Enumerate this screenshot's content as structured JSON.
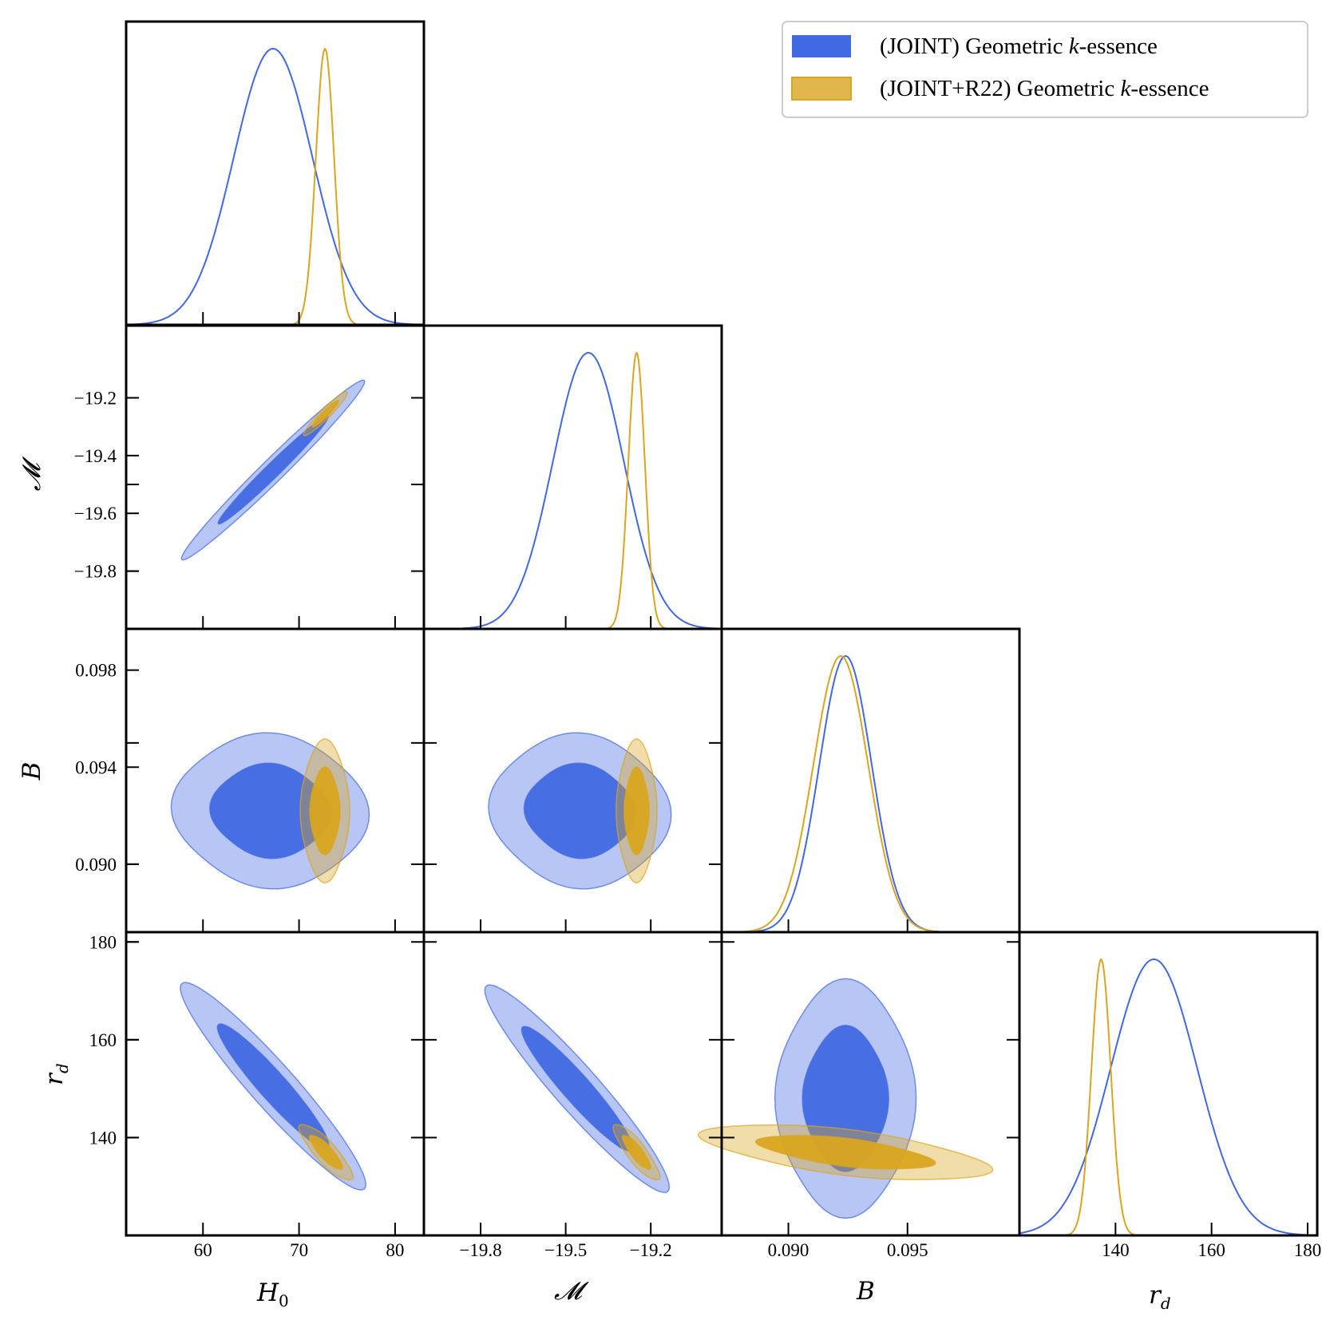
{
  "chart_data": {
    "type": "corner",
    "parameters": [
      {
        "key": "H0",
        "label": "H0",
        "range": [
          52,
          83
        ],
        "ticks": [
          60,
          70,
          80
        ]
      },
      {
        "key": "M",
        "label": "𝓜",
        "range": [
          -20.0,
          -18.95
        ],
        "ticks": [
          -19.8,
          -19.5,
          -19.2
        ]
      },
      {
        "key": "B",
        "label": "B",
        "range": [
          0.0872,
          0.0997
        ],
        "ticks": [
          0.09,
          0.095
        ]
      },
      {
        "key": "rd",
        "label": "rd",
        "range": [
          120,
          182
        ],
        "ticks": [
          140,
          160,
          180
        ]
      }
    ],
    "tick_text": {
      "H0": [
        "60",
        "70",
        "80"
      ],
      "M_x": [
        "−19.8",
        "−19.5",
        "−19.2"
      ],
      "B_x": [
        "0.090",
        "0.095"
      ],
      "rd_x": [
        "140",
        "160",
        "180"
      ],
      "M_y": [
        "−19.2",
        "−19.4",
        "−19.6",
        "−19.8"
      ],
      "B_y": [
        "0.098",
        "0.094",
        "0.090"
      ],
      "rd_y": [
        "180",
        "160",
        "140"
      ]
    },
    "axis_labels": {
      "x_H0": "H",
      "x_H0_sub": "0",
      "x_M": "𝓜",
      "x_B": "B",
      "x_rd": "r",
      "x_rd_sub": "d",
      "y_M": "𝓜",
      "y_B": "B",
      "y_rd": "r",
      "y_rd_sub": "d"
    },
    "legend": {
      "position": "top-right",
      "entries": [
        {
          "prefix": "(JOINT)  Geometric ",
          "var": "k",
          "suffix": "-essence",
          "color": "#4169e1"
        },
        {
          "prefix": "(JOINT+R22)  Geometric ",
          "var": "k",
          "suffix": "-essence",
          "color": "#daa520"
        }
      ]
    },
    "series": [
      {
        "name": "(JOINT) Geometric k-essence",
        "color": "#4169e1",
        "marginals": {
          "H0": {
            "mean": 67.3,
            "sd": 4.1
          },
          "M": {
            "mean": -19.42,
            "sd": 0.125
          },
          "B": {
            "mean": 0.0924,
            "sd": 0.0011
          },
          "rd": {
            "mean": 148.0,
            "sd": 9.0
          }
        },
        "contours_2d": [
          {
            "x": "H0",
            "y": "M",
            "center": [
              67.3,
              -19.45
            ],
            "endpoints": [
              [
                57.8,
                -19.76
              ],
              [
                76.8,
                -19.14
              ]
            ],
            "corr": 0.997
          },
          {
            "x": "H0",
            "y": "B",
            "center": [
              67.0,
              0.0922
            ],
            "sigma": [
              4.0,
              0.00125
            ],
            "corr": -0.05
          },
          {
            "x": "M",
            "y": "B",
            "center": [
              -19.45,
              0.0922
            ],
            "sigma": [
              0.125,
              0.00125
            ],
            "corr": -0.05
          },
          {
            "x": "H0",
            "y": "rd",
            "center": [
              67.3,
              150.5
            ],
            "endpoints": [
              [
                57.8,
                171.5
              ],
              [
                76.8,
                129.5
              ]
            ],
            "corr": -0.99
          },
          {
            "x": "M",
            "y": "rd",
            "center": [
              -19.45,
              150.5
            ],
            "endpoints": [
              [
                -19.78,
                171.0
              ],
              [
                -19.14,
                129.0
              ]
            ],
            "corr": -0.99
          },
          {
            "x": "B",
            "y": "rd",
            "center": [
              0.0924,
              148.0
            ],
            "sigma": [
              0.00115,
              9.5
            ],
            "corr": 0.0
          }
        ]
      },
      {
        "name": "(JOINT+R22) Geometric k-essence",
        "color": "#daa520",
        "marginals": {
          "H0": {
            "mean": 72.7,
            "sd": 0.95
          },
          "M": {
            "mean": -19.25,
            "sd": 0.029
          },
          "B": {
            "mean": 0.0922,
            "sd": 0.00115
          },
          "rd": {
            "mean": 137.0,
            "sd": 2.0
          }
        },
        "contours_2d": [
          {
            "x": "H0",
            "y": "M",
            "center": [
              72.7,
              -19.26
            ],
            "endpoints": [
              [
                70.5,
                -19.33
              ],
              [
                75.0,
                -19.18
              ]
            ],
            "corr": 0.99
          },
          {
            "x": "H0",
            "y": "B",
            "center": [
              72.7,
              0.0922
            ],
            "sigma": [
              1.0,
              0.00115
            ],
            "corr": 0.0
          },
          {
            "x": "M",
            "y": "B",
            "center": [
              -19.25,
              0.0922
            ],
            "sigma": [
              0.028,
              0.00115
            ],
            "corr": 0.0
          },
          {
            "x": "H0",
            "y": "rd",
            "center": [
              72.8,
              137.0
            ],
            "sigma": [
              1.1,
              2.3
            ],
            "corr": -0.85
          },
          {
            "x": "M",
            "y": "rd",
            "center": [
              -19.25,
              137.0
            ],
            "sigma": [
              0.032,
              2.3
            ],
            "corr": -0.85
          },
          {
            "x": "B",
            "y": "rd",
            "center": [
              0.0924,
              137.0
            ],
            "sigma": [
              0.0024,
              2.3
            ],
            "corr": -0.6
          }
        ]
      }
    ]
  }
}
